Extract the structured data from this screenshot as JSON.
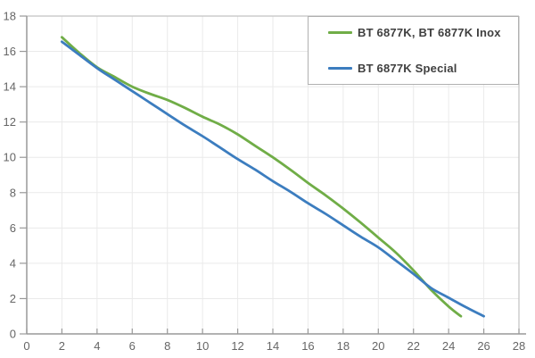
{
  "chart_data": {
    "type": "line",
    "title": "",
    "xlabel": "",
    "ylabel": "",
    "xlim": [
      0,
      28
    ],
    "ylim": [
      0,
      18
    ],
    "xtick_step": 2,
    "ytick_step": 2,
    "grid": true,
    "legend_position": "top-right",
    "series": [
      {
        "name": "BT 6877K, BT 6877K Inox",
        "color": "#70AD47",
        "points": [
          [
            2,
            16.8
          ],
          [
            3,
            15.9
          ],
          [
            4,
            15.1
          ],
          [
            5,
            14.55
          ],
          [
            6,
            14.0
          ],
          [
            7,
            13.6
          ],
          [
            8,
            13.25
          ],
          [
            9,
            12.8
          ],
          [
            10,
            12.3
          ],
          [
            11,
            11.85
          ],
          [
            12,
            11.3
          ],
          [
            13,
            10.65
          ],
          [
            14,
            10.0
          ],
          [
            15,
            9.3
          ],
          [
            16,
            8.55
          ],
          [
            17,
            7.85
          ],
          [
            18,
            7.1
          ],
          [
            19,
            6.3
          ],
          [
            20,
            5.45
          ],
          [
            21,
            4.6
          ],
          [
            22,
            3.6
          ],
          [
            23,
            2.5
          ],
          [
            24,
            1.55
          ],
          [
            24.7,
            1.0
          ]
        ]
      },
      {
        "name": "BT 6877K Special",
        "color": "#3C7DBF",
        "points": [
          [
            2,
            16.55
          ],
          [
            3,
            15.8
          ],
          [
            4,
            15.05
          ],
          [
            5,
            14.4
          ],
          [
            6,
            13.75
          ],
          [
            7,
            13.1
          ],
          [
            8,
            12.45
          ],
          [
            9,
            11.8
          ],
          [
            10,
            11.2
          ],
          [
            11,
            10.55
          ],
          [
            12,
            9.9
          ],
          [
            13,
            9.3
          ],
          [
            14,
            8.65
          ],
          [
            15,
            8.05
          ],
          [
            16,
            7.4
          ],
          [
            17,
            6.8
          ],
          [
            18,
            6.15
          ],
          [
            19,
            5.5
          ],
          [
            20,
            4.9
          ],
          [
            21,
            4.15
          ],
          [
            22,
            3.4
          ],
          [
            23,
            2.6
          ],
          [
            24,
            2.05
          ],
          [
            25,
            1.5
          ],
          [
            26,
            1.0
          ]
        ]
      }
    ],
    "colors": {
      "background": "#FFFFFF",
      "grid": "#EAEAEA",
      "axis": "#999999",
      "border": "#C2C2C2",
      "tick_label": "#666666",
      "legend_text": "#3F3F3F",
      "legend_border": "#B0B0B0"
    }
  }
}
